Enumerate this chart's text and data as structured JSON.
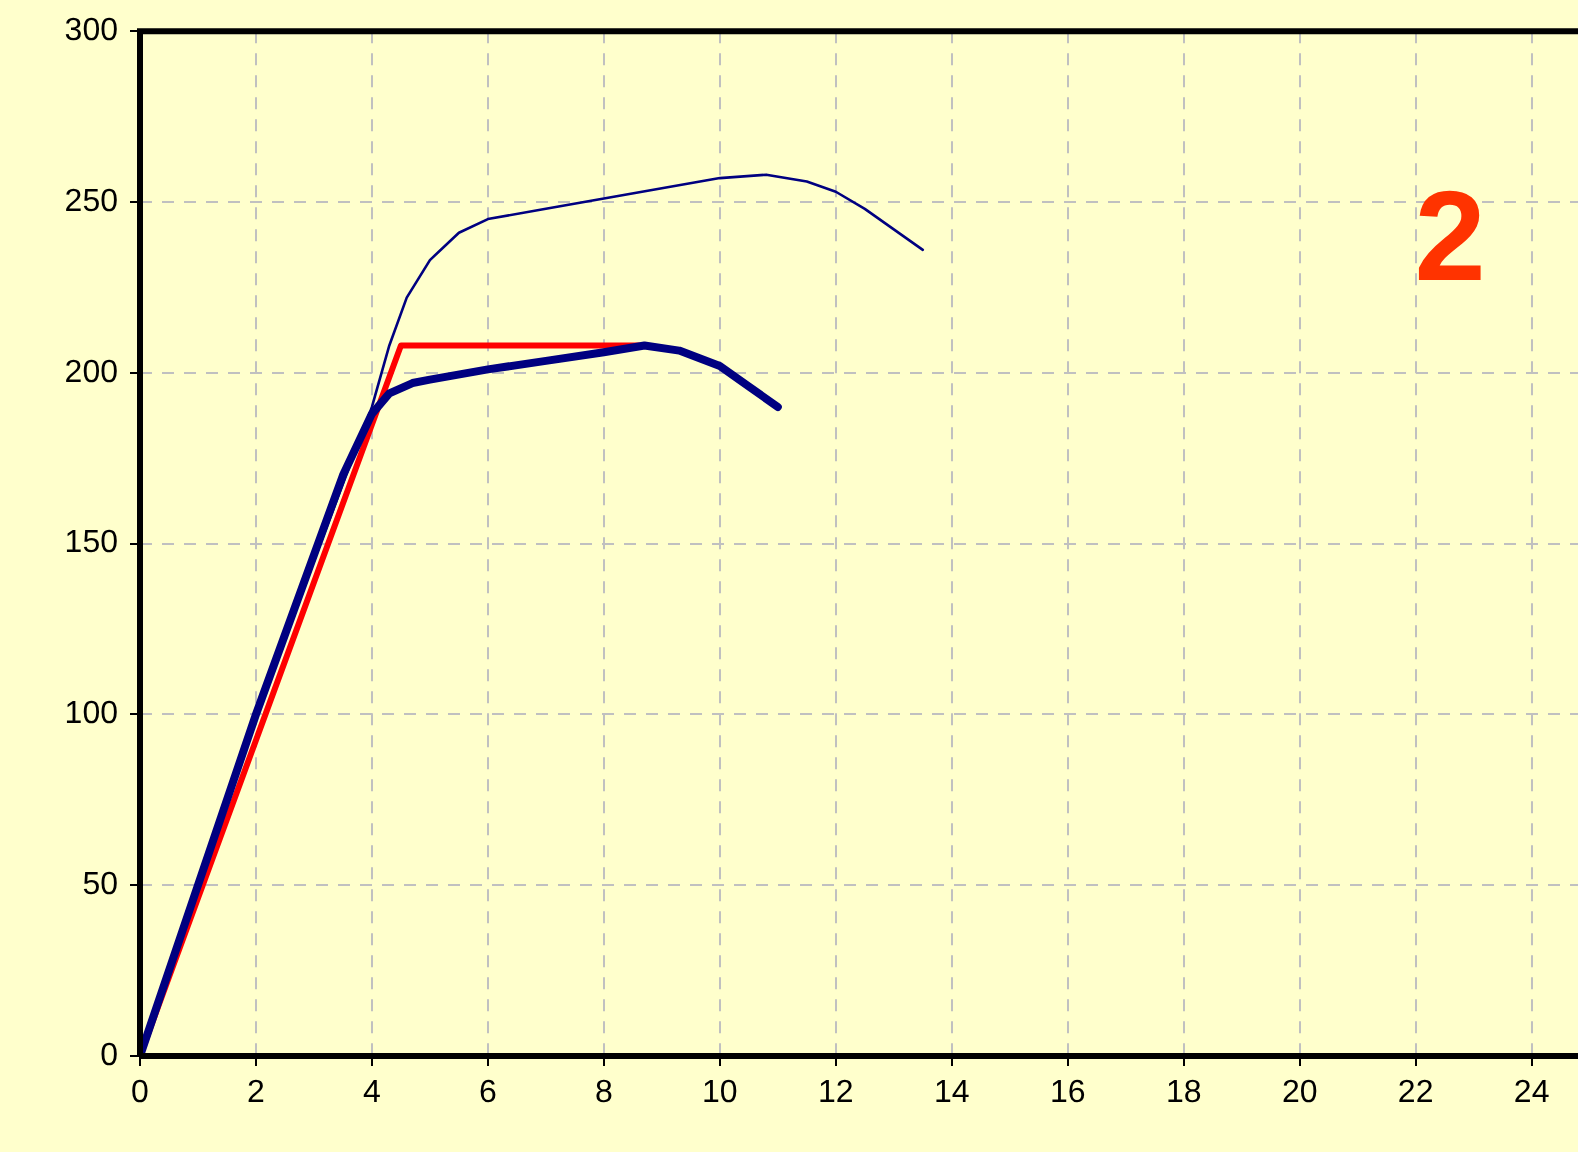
{
  "chart_data": {
    "type": "line",
    "xlim": [
      0,
      24.8
    ],
    "xticks": [
      0,
      2,
      4,
      6,
      8,
      10,
      12,
      14,
      16,
      18,
      20,
      22,
      24
    ],
    "ylim": [
      0,
      300
    ],
    "yticks": [
      0,
      50,
      100,
      150,
      200,
      250,
      300
    ],
    "grid": true,
    "legend": false,
    "marker": "none",
    "line_style": "solid",
    "annotations": [
      "2"
    ],
    "series": [
      {
        "color": "#000080",
        "x": [
          0,
          2,
          4,
          4.3,
          4.6,
          5,
          5.5,
          6,
          7,
          8,
          9,
          10,
          10.8,
          11.5,
          12,
          12.5,
          13,
          13.5
        ],
        "values": [
          0,
          100,
          190,
          208,
          222,
          233,
          241,
          245,
          248,
          251,
          254,
          257,
          258,
          256,
          253,
          248,
          242,
          236
        ]
      },
      {
        "color": "#000080",
        "x": [
          0,
          2,
          3.5,
          4,
          4.3,
          4.7,
          5,
          6,
          7,
          8,
          8.7,
          9.3,
          10,
          10.5,
          11
        ],
        "values": [
          0,
          100,
          170,
          188,
          194,
          197,
          198,
          201,
          203.5,
          206,
          208,
          206.5,
          202,
          196,
          190
        ]
      },
      {
        "color": "#ff0000",
        "x": [
          0,
          4.5,
          8.6
        ],
        "values": [
          0,
          208,
          208
        ]
      }
    ]
  }
}
